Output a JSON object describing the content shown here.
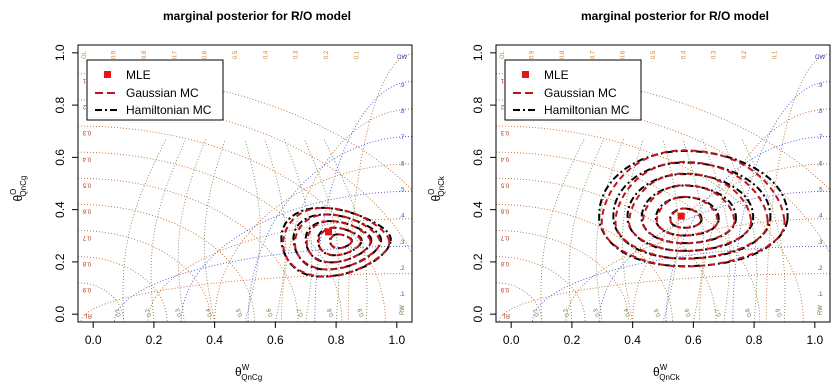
{
  "colors": {
    "grid_left": "#c26c30",
    "grid_right": "#4a58d0",
    "grid_bottom": "#7a8a55",
    "mle": "#e8141c",
    "gaussian": "#c0141c",
    "hamiltonian": "#000000",
    "tern_left_text": "#b23a1a",
    "tern_top_text": "#d08030",
    "tern_right_text": "#3a48c8",
    "tern_bottom_text": "#6a7a45"
  },
  "ternary_labels": {
    "left": [
      "0.1",
      "0.2",
      "0.3",
      "0.4",
      "0.5",
      "0.6",
      "0.7",
      "0.8",
      "0.9"
    ],
    "top": [
      "0.9",
      "0.8",
      "0.7",
      "0.6",
      "0.5",
      "0.4",
      "0.3",
      "0.2",
      "0.1"
    ],
    "right": [
      ".9",
      ".8",
      ".7",
      ".6",
      ".5",
      ".4",
      ".3",
      ".2",
      ".1"
    ],
    "bottom": [
      "0.1",
      "0.2",
      "0.3",
      "0.4",
      "0.5",
      "0.6",
      "0.7",
      "0.8",
      "0.9"
    ],
    "corner_top_left": "OL",
    "corner_top_right": "OW",
    "corner_bottom_left": "RL",
    "corner_bottom_right": "RW"
  },
  "chart_data": [
    {
      "type": "scatter",
      "title": "marginal posterior for R/O model",
      "xlabel_main": "θ",
      "xlabel_sup": "W",
      "xlabel_sub": "QnCg",
      "ylabel_main": "θ",
      "ylabel_sup": "O",
      "ylabel_sub": "QnCg",
      "xlim": [
        -0.05,
        1.05
      ],
      "ylim": [
        -0.03,
        1.03
      ],
      "x_ticks": [
        "0.0",
        "0.2",
        "0.4",
        "0.6",
        "0.8",
        "1.0"
      ],
      "y_ticks": [
        "0.0",
        "0.2",
        "0.4",
        "0.6",
        "0.8",
        "1.0"
      ],
      "legend": {
        "position": "top-left",
        "entries": [
          "MLE",
          "Gaussian MC",
          "Hamiltonian MC"
        ]
      },
      "mle": {
        "x": 0.775,
        "y": 0.315
      },
      "contours": {
        "center": [
          0.82,
          0.28
        ],
        "outer_radii": [
          0.16,
          0.2,
          0.12,
          0.13
        ],
        "rings": 5
      }
    },
    {
      "type": "scatter",
      "title": "marginal posterior for R/O model",
      "xlabel_main": "θ",
      "xlabel_sup": "W",
      "xlabel_sub": "QnCk",
      "ylabel_main": "θ",
      "ylabel_sup": "O",
      "ylabel_sub": "QnCk",
      "xlim": [
        -0.05,
        1.05
      ],
      "ylim": [
        -0.03,
        1.03
      ],
      "x_ticks": [
        "0.0",
        "0.2",
        "0.4",
        "0.6",
        "0.8",
        "1.0"
      ],
      "y_ticks": [
        "0.0",
        "0.2",
        "0.4",
        "0.6",
        "0.8",
        "1.0"
      ],
      "legend": {
        "position": "top-left",
        "entries": [
          "MLE",
          "Gaussian MC",
          "Hamiltonian MC"
        ]
      },
      "mle": {
        "x": 0.56,
        "y": 0.375
      },
      "contours": {
        "center": [
          0.57,
          0.36
        ],
        "outer_radii": [
          0.34,
          0.28,
          0.27,
          0.18
        ],
        "rings": 6
      }
    }
  ]
}
